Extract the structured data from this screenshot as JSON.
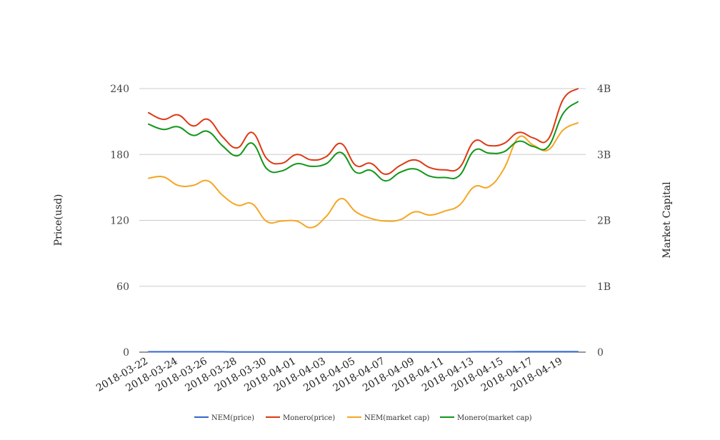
{
  "chart_data": {
    "type": "line",
    "title": "",
    "xlabel": "",
    "ylabel_left": "Price(usd)",
    "ylabel_right": "Market Capital",
    "ylim_left": [
      0,
      240
    ],
    "ylim_right": [
      0,
      4000000000
    ],
    "left_ticks": [
      {
        "value": 0,
        "label": "0"
      },
      {
        "value": 60,
        "label": "60"
      },
      {
        "value": 120,
        "label": "120"
      },
      {
        "value": 180,
        "label": "180"
      },
      {
        "value": 240,
        "label": "240"
      }
    ],
    "right_ticks": [
      {
        "value": 0,
        "label": "0"
      },
      {
        "value": 1000000000,
        "label": "1B"
      },
      {
        "value": 2000000000,
        "label": "2B"
      },
      {
        "value": 3000000000,
        "label": "3B"
      },
      {
        "value": 4000000000,
        "label": "4B"
      }
    ],
    "grid": true,
    "legend_position": "bottom",
    "x": [
      "2018-03-22",
      "2018-03-23",
      "2018-03-24",
      "2018-03-25",
      "2018-03-26",
      "2018-03-27",
      "2018-03-28",
      "2018-03-29",
      "2018-03-30",
      "2018-03-31",
      "2018-04-01",
      "2018-04-02",
      "2018-04-03",
      "2018-04-04",
      "2018-04-05",
      "2018-04-06",
      "2018-04-07",
      "2018-04-08",
      "2018-04-09",
      "2018-04-10",
      "2018-04-11",
      "2018-04-12",
      "2018-04-13",
      "2018-04-14",
      "2018-04-15",
      "2018-04-16",
      "2018-04-17",
      "2018-04-18",
      "2018-04-19",
      "2018-04-20"
    ],
    "x_tick_labels": [
      "2018-03-22",
      "2018-03-24",
      "2018-03-26",
      "2018-03-28",
      "2018-03-30",
      "2018-04-01",
      "2018-04-03",
      "2018-04-05",
      "2018-04-07",
      "2018-04-09",
      "2018-04-11",
      "2018-04-13",
      "2018-04-15",
      "2018-04-17",
      "2018-04-19"
    ],
    "series": [
      {
        "name": "NEM(price)",
        "axis": "left",
        "color": "#3366cc",
        "values": [
          0.3,
          0.3,
          0.3,
          0.3,
          0.3,
          0.3,
          0.2,
          0.2,
          0.2,
          0.2,
          0.2,
          0.2,
          0.2,
          0.2,
          0.2,
          0.2,
          0.2,
          0.2,
          0.2,
          0.2,
          0.2,
          0.2,
          0.3,
          0.3,
          0.3,
          0.4,
          0.4,
          0.4,
          0.4,
          0.4
        ]
      },
      {
        "name": "Monero(price)",
        "axis": "left",
        "color": "#dc3912",
        "values": [
          218,
          212,
          216,
          206,
          212,
          196,
          186,
          200,
          176,
          172,
          180,
          175,
          178,
          190,
          170,
          172,
          162,
          170,
          175,
          168,
          166,
          168,
          192,
          188,
          190,
          200,
          195,
          194,
          230,
          240
        ]
      },
      {
        "name": "NEM(market cap)",
        "axis": "right",
        "color": "#f5a623",
        "values": [
          2640000000,
          2660000000,
          2530000000,
          2530000000,
          2600000000,
          2380000000,
          2230000000,
          2250000000,
          1980000000,
          1990000000,
          1990000000,
          1890000000,
          2060000000,
          2330000000,
          2130000000,
          2030000000,
          1990000000,
          2010000000,
          2130000000,
          2080000000,
          2140000000,
          2230000000,
          2510000000,
          2510000000,
          2780000000,
          3260000000,
          3140000000,
          3070000000,
          3370000000,
          3480000000
        ]
      },
      {
        "name": "Monero(market cap)",
        "axis": "right",
        "color": "#109618",
        "values": [
          3460000000,
          3380000000,
          3420000000,
          3290000000,
          3350000000,
          3130000000,
          2980000000,
          3170000000,
          2780000000,
          2750000000,
          2860000000,
          2820000000,
          2860000000,
          3030000000,
          2730000000,
          2760000000,
          2600000000,
          2730000000,
          2780000000,
          2670000000,
          2650000000,
          2680000000,
          3060000000,
          3020000000,
          3040000000,
          3200000000,
          3120000000,
          3120000000,
          3620000000,
          3800000000
        ]
      }
    ]
  }
}
